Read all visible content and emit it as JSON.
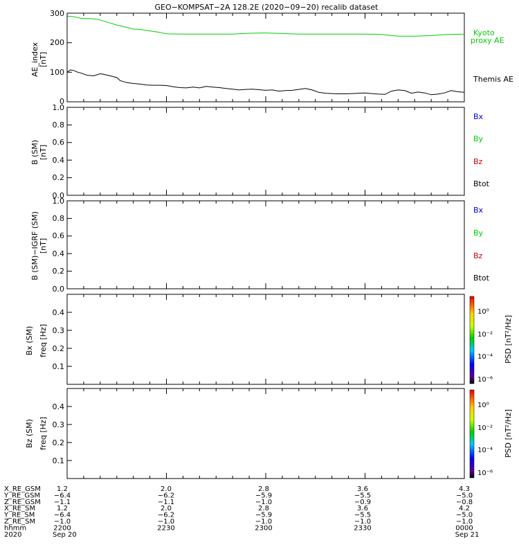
{
  "title": "GEO−KOMPSAT−2A 128.2E (2020−09−20) recalib dataset",
  "colors": {
    "kyoto": "#00cc00",
    "themis": "#000000",
    "bx": "#0000cc",
    "by": "#00cc00",
    "bz": "#cc0000",
    "btot": "#000000"
  },
  "panels": {
    "ae": {
      "ylabel_1": "AE_index",
      "ylabel_2": "[nT]",
      "yticks": [
        "0",
        "100",
        "200",
        "300"
      ],
      "legend_kyoto_1": "Kyoto",
      "legend_kyoto_2": "proxy AE",
      "legend_themis": "Themis AE"
    },
    "b_sm": {
      "ylabel_1": "B (SM)",
      "ylabel_2": "[nT]",
      "yticks": [
        "0.0",
        "0.2",
        "0.4",
        "0.6",
        "0.8",
        "1.0"
      ],
      "legend": [
        "Bx",
        "By",
        "Bz",
        "Btot"
      ]
    },
    "b_igrf": {
      "ylabel_1": "B (SM)−IGRF (SM)",
      "ylabel_2": "[nT]",
      "yticks": [
        "0.0",
        "0.2",
        "0.4",
        "0.6",
        "0.8",
        "1.0"
      ],
      "legend": [
        "Bx",
        "By",
        "Bz",
        "Btot"
      ]
    },
    "bx_spec": {
      "ylabel_1": "Bx (SM)",
      "ylabel_2": "freq [Hz]",
      "yticks": [
        "0.1",
        "0.2",
        "0.3",
        "0.4"
      ],
      "cbar_label": "PSD [nT²/Hz]",
      "cbar_ticks": [
        "10⁰",
        "10⁻²",
        "10⁻⁴",
        "10⁻⁶"
      ]
    },
    "bz_spec": {
      "ylabel_1": "Bz (SM)",
      "ylabel_2": "freq [Hz]",
      "yticks": [
        "0.1",
        "0.2",
        "0.3",
        "0.4"
      ],
      "cbar_label": "PSD [nT²/Hz]",
      "cbar_ticks": [
        "10⁰",
        "10⁻²",
        "10⁻⁴",
        "10⁻⁶"
      ]
    }
  },
  "ephemeris": {
    "row_labels": [
      "X_RE_GSM",
      "Y_RE_GSM",
      "Z_RE_GSM",
      "X_RE_SM",
      "Y_RE_SM",
      "Z_RE_SM",
      "hhmm",
      "2020"
    ],
    "columns": [
      [
        "1.2",
        "−6.4",
        "−1.1",
        "1.2",
        "−6.4",
        "−1.0",
        "2200",
        "Sep 20"
      ],
      [
        "2.0",
        "−6.2",
        "−1.1",
        "2.0",
        "−6.2",
        "−1.0",
        "2230",
        ""
      ],
      [
        "2.8",
        "−5.9",
        "−1.0",
        "2.8",
        "−5.9",
        "−1.0",
        "2300",
        ""
      ],
      [
        "3.6",
        "−5.5",
        "−0.9",
        "3.6",
        "−5.5",
        "−1.0",
        "2330",
        ""
      ],
      [
        "4.3",
        "−5.0",
        "−0.8",
        "4.2",
        "−5.0",
        "−1.0",
        "0000",
        "Sep 21"
      ]
    ]
  },
  "chart_data": {
    "type": "line",
    "title": "GEO−KOMPSAT−2A 128.2E (2020−09−20) recalib dataset",
    "x_unit": "minutes after 2020-09-20 22:00 UT",
    "xlim": [
      0,
      120
    ],
    "xtick_labels": [
      "2200",
      "2230",
      "2300",
      "2330",
      "0000"
    ],
    "ae_panel": {
      "ylabel": "AE_index [nT]",
      "ylim": [
        0,
        300
      ],
      "series": [
        {
          "name": "Kyoto proxy AE",
          "x": [
            0,
            2,
            4,
            6,
            8,
            10,
            12,
            15,
            18,
            20,
            22,
            25,
            28,
            30,
            35,
            40,
            50,
            55,
            60,
            65,
            70,
            75,
            80,
            85,
            90,
            95,
            100,
            105,
            110,
            115,
            120
          ],
          "y": [
            290,
            288,
            283,
            282,
            281,
            277,
            270,
            260,
            252,
            246,
            245,
            240,
            235,
            230,
            229,
            229,
            229,
            232,
            233,
            231,
            229,
            229,
            229,
            229,
            229,
            228,
            222,
            222,
            224,
            228,
            229
          ]
        },
        {
          "name": "Themis AE",
          "x": [
            0,
            1,
            2,
            3,
            4,
            6,
            8,
            10,
            11,
            13,
            15,
            16,
            18,
            20,
            22,
            24,
            26,
            28,
            30,
            32,
            34,
            36,
            38,
            40,
            42,
            44,
            46,
            48,
            50,
            52,
            54,
            56,
            58,
            60,
            62,
            64,
            66,
            68,
            70,
            72,
            74,
            76,
            78,
            80,
            82,
            84,
            86,
            88,
            90,
            92,
            94,
            96,
            98,
            100,
            102,
            104,
            106,
            108,
            110,
            112,
            114,
            116,
            118,
            120
          ],
          "y": [
            100,
            108,
            106,
            101,
            98,
            90,
            88,
            95,
            93,
            88,
            82,
            72,
            65,
            62,
            60,
            57,
            56,
            56,
            55,
            51,
            48,
            47,
            50,
            47,
            52,
            50,
            48,
            45,
            43,
            40,
            42,
            43,
            41,
            39,
            40,
            36,
            38,
            39,
            42,
            45,
            40,
            32,
            29,
            28,
            27,
            27,
            28,
            29,
            30,
            28,
            26,
            25,
            36,
            40,
            38,
            29,
            33,
            30,
            24,
            26,
            30,
            38,
            34,
            32
          ]
        }
      ]
    },
    "b_sm_panel": {
      "ylabel": "B (SM) [nT]",
      "ylim": [
        0,
        1
      ],
      "legend": [
        "Bx",
        "By",
        "Bz",
        "Btot"
      ]
    },
    "b_igrf_panel": {
      "ylabel": "B (SM)−IGRF (SM) [nT]",
      "ylim": [
        0,
        1
      ],
      "legend": [
        "Bx",
        "By",
        "Bz",
        "Btot"
      ]
    },
    "bx_spectrogram": {
      "ylabel": "Bx (SM) freq [Hz]",
      "ylim": [
        0,
        0.5
      ]
    },
    "bz_spectrogram": {
      "ylabel": "Bz (SM) freq [Hz]",
      "ylim": [
        0,
        0.5
      ]
    }
  }
}
